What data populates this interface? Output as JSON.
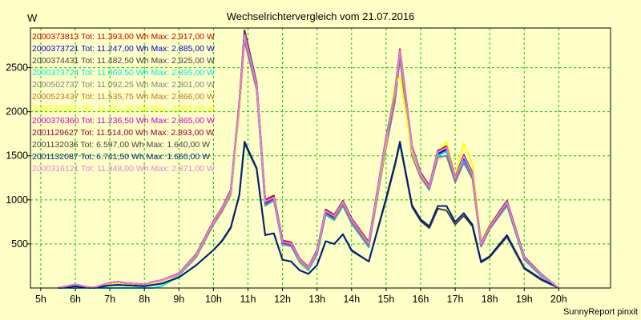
{
  "chart_data": {
    "type": "line",
    "title": "Wechselrichtervergleich vom 21.07.2016",
    "ylabel": "W",
    "xlabel": "",
    "footer": "SunnyReport pinxit",
    "background": "#ffffc8",
    "grid": true,
    "grid_color": "#00cc00",
    "legend_position": "top-left",
    "xlim": [
      4.7,
      21.5
    ],
    "ylim": [
      0,
      2950
    ],
    "x_ticks": [
      5,
      6,
      7,
      8,
      9,
      10,
      11,
      12,
      13,
      14,
      15,
      16,
      17,
      18,
      19,
      20
    ],
    "x_tick_labels": [
      "5h",
      "6h",
      "7h",
      "8h",
      "9h",
      "10h",
      "11h",
      "12h",
      "13h",
      "14h",
      "15h",
      "16h",
      "17h",
      "18h",
      "19h",
      "20h"
    ],
    "y_ticks": [
      500,
      1000,
      1500,
      2000,
      2500
    ],
    "y_tick_labels": [
      "500",
      "1000",
      "1500",
      "2000",
      "2500"
    ],
    "x": [
      5.5,
      6,
      6.5,
      7,
      7.25,
      7.5,
      8,
      8.25,
      8.5,
      9,
      9.5,
      10,
      10.25,
      10.5,
      10.75,
      10.9,
      11.25,
      11.5,
      11.75,
      12,
      12.25,
      12.5,
      12.75,
      13,
      13.25,
      13.5,
      13.75,
      14,
      14.5,
      15,
      15.25,
      15.4,
      15.75,
      16,
      16.25,
      16.5,
      16.75,
      17,
      17.25,
      17.5,
      17.75,
      18,
      18.5,
      19,
      19.5,
      20
    ],
    "series": [
      {
        "name": "2000373813 Tot: 11.393,00 Wh Max: 2.917,00 W",
        "color": "#cc0000",
        "values": [
          0,
          40,
          0,
          60,
          70,
          55,
          40,
          70,
          90,
          160,
          380,
          750,
          900,
          1100,
          2100,
          2917,
          2320,
          990,
          1040,
          530,
          510,
          320,
          230,
          420,
          880,
          820,
          980,
          780,
          510,
          1700,
          2200,
          2700,
          1600,
          1300,
          1150,
          1550,
          1600,
          1250,
          1500,
          1300,
          500,
          700,
          980,
          350,
          150,
          0
        ]
      },
      {
        "name": "2000373721 Tot: 11.247,00 Wh Max: 2.885,00 W",
        "color": "#0000cc",
        "values": [
          0,
          30,
          0,
          45,
          60,
          50,
          35,
          60,
          80,
          150,
          360,
          730,
          880,
          1070,
          2070,
          2885,
          2280,
          950,
          1010,
          500,
          480,
          300,
          210,
          390,
          850,
          790,
          950,
          750,
          480,
          1670,
          2170,
          2680,
          1570,
          1280,
          1130,
          1520,
          1570,
          1220,
          1460,
          1270,
          480,
          680,
          950,
          330,
          140,
          0
        ]
      },
      {
        "name": "2000374431 Tot: 11.482,50 Wh Max: 2.925,00 W",
        "color": "#404040",
        "values": [
          0,
          40,
          0,
          60,
          70,
          55,
          40,
          70,
          90,
          165,
          385,
          760,
          910,
          1110,
          2110,
          2925,
          2330,
          1000,
          1050,
          540,
          520,
          330,
          240,
          430,
          890,
          830,
          990,
          790,
          520,
          1710,
          2210,
          2710,
          1610,
          1310,
          1160,
          1560,
          1610,
          1260,
          1510,
          1310,
          510,
          710,
          990,
          355,
          155,
          0
        ]
      },
      {
        "name": "2000373724 Tot: 11.069,50 Wh Max: 2.895,00 W",
        "color": "#00e5e5",
        "values": [
          0,
          0,
          0,
          0,
          0,
          0,
          0,
          0,
          20,
          140,
          350,
          720,
          870,
          1060,
          2050,
          2895,
          2260,
          930,
          990,
          490,
          470,
          290,
          200,
          380,
          830,
          770,
          930,
          730,
          460,
          1650,
          2150,
          2670,
          1550,
          1260,
          1110,
          1500,
          1550,
          1200,
          1440,
          1250,
          470,
          670,
          930,
          320,
          130,
          0
        ]
      },
      {
        "name": "2000502737 Tot: 11.092,25 Wh Max: 2.801,00 W",
        "color": "#808080",
        "values": [
          0,
          30,
          0,
          45,
          60,
          50,
          35,
          60,
          80,
          150,
          355,
          720,
          870,
          1060,
          2040,
          2801,
          2250,
          940,
          1000,
          500,
          480,
          300,
          210,
          390,
          840,
          780,
          940,
          740,
          470,
          1600,
          2100,
          2600,
          1500,
          1250,
          1120,
          1480,
          1500,
          1200,
          1420,
          1240,
          470,
          670,
          940,
          330,
          140,
          0
        ]
      },
      {
        "name": "2000523437 Tot: 11.535,75 Wh Max: 2.866,00 W",
        "color": "#b87333",
        "values": [
          0,
          40,
          0,
          60,
          70,
          55,
          40,
          70,
          90,
          165,
          385,
          760,
          910,
          1110,
          2090,
          2866,
          2310,
          1000,
          1050,
          540,
          520,
          330,
          240,
          430,
          880,
          830,
          990,
          790,
          520,
          1700,
          2200,
          2650,
          1600,
          1300,
          1160,
          1550,
          1600,
          1260,
          1500,
          1300,
          510,
          710,
          990,
          355,
          155,
          0
        ]
      },
      {
        "name": "2000523825 Tot: 11.351,00 Wh Max: 2.861,00 W",
        "color": "#ffff00",
        "values": [
          0,
          30,
          0,
          45,
          60,
          50,
          35,
          60,
          80,
          150,
          370,
          740,
          890,
          1080,
          2000,
          2861,
          2300,
          980,
          1030,
          520,
          500,
          310,
          220,
          410,
          870,
          810,
          970,
          770,
          500,
          1650,
          2300,
          2400,
          1550,
          1280,
          1140,
          1540,
          1660,
          1280,
          1640,
          1400,
          520,
          720,
          970,
          350,
          150,
          0
        ]
      },
      {
        "name": "2000376360 Tot: 11.236,50 Wh Max: 2.865,00 W",
        "color": "#cc00cc",
        "values": [
          0,
          40,
          0,
          60,
          70,
          55,
          40,
          70,
          90,
          155,
          375,
          745,
          895,
          1090,
          2080,
          2865,
          2300,
          970,
          1020,
          515,
          495,
          315,
          225,
          410,
          870,
          810,
          970,
          770,
          500,
          1690,
          2190,
          2690,
          1590,
          1290,
          1140,
          1540,
          1590,
          1240,
          1490,
          1290,
          490,
          690,
          970,
          340,
          145,
          0
        ]
      },
      {
        "name": "2001129627 Tot: 11.514,00 Wh Max: 2.893,00 W",
        "color": "#990033",
        "values": [
          0,
          40,
          0,
          60,
          70,
          55,
          40,
          70,
          90,
          162,
          382,
          755,
          905,
          1105,
          2100,
          2893,
          2320,
          995,
          1045,
          535,
          515,
          325,
          235,
          425,
          885,
          825,
          985,
          785,
          515,
          1705,
          2205,
          2705,
          1605,
          1305,
          1155,
          1555,
          1605,
          1255,
          1505,
          1305,
          505,
          705,
          985,
          352,
          152,
          0
        ]
      },
      {
        "name": "2001132036 Tot: 6.597,00 Wh Max: 1.640,00 W",
        "color": "#404040",
        "values": [
          0,
          20,
          0,
          30,
          35,
          30,
          20,
          35,
          50,
          120,
          260,
          430,
          530,
          680,
          1050,
          1640,
          1350,
          600,
          620,
          320,
          300,
          200,
          160,
          260,
          530,
          500,
          610,
          420,
          300,
          1000,
          1380,
          1640,
          920,
          760,
          680,
          900,
          880,
          720,
          820,
          700,
          290,
          350,
          580,
          220,
          90,
          0
        ]
      },
      {
        "name": "2001132087 Tot: 6.741,50 Wh Max: 1.660,00 W",
        "color": "#001f7f",
        "values": [
          0,
          20,
          0,
          30,
          35,
          30,
          20,
          35,
          50,
          120,
          260,
          430,
          540,
          690,
          1060,
          1660,
          1360,
          600,
          620,
          320,
          300,
          200,
          160,
          260,
          530,
          500,
          610,
          430,
          300,
          1020,
          1400,
          1660,
          940,
          780,
          700,
          930,
          930,
          750,
          850,
          720,
          300,
          360,
          600,
          230,
          100,
          0
        ]
      },
      {
        "name": "2000316121 Tot: 11.348,00 Wh Max: 2.871,00 W",
        "color": "#e080e0",
        "values": [
          0,
          40,
          0,
          60,
          70,
          55,
          40,
          70,
          90,
          158,
          378,
          750,
          900,
          1095,
          2085,
          2871,
          2305,
          980,
          1030,
          525,
          505,
          320,
          230,
          418,
          875,
          815,
          975,
          775,
          505,
          1695,
          2195,
          2695,
          1595,
          1295,
          1145,
          1545,
          1595,
          1245,
          1495,
          1295,
          495,
          695,
          975,
          345,
          148,
          0
        ]
      }
    ]
  }
}
